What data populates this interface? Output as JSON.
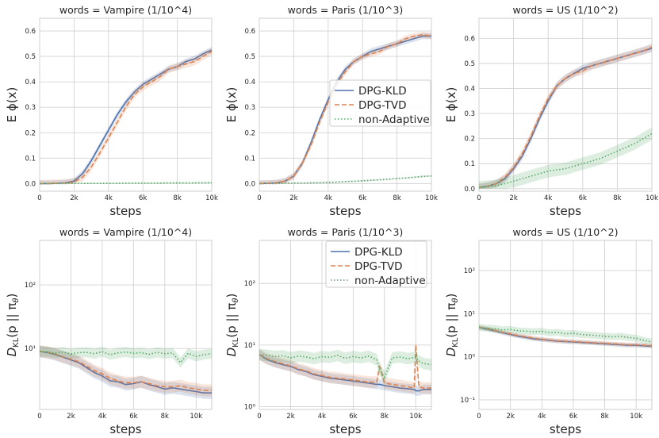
{
  "colors": {
    "DPG-KLD": "#4c72b0",
    "DPG-TVD": "#dd8452",
    "non-Adaptive": "#55a868"
  },
  "chart_data": [
    {
      "type": "line",
      "title": "words = Vampire (1/10^4)",
      "xlabel": "steps",
      "ylabel": "E ϕ(x)",
      "xlim": [
        0,
        10000
      ],
      "ylim": [
        -0.03,
        0.65
      ],
      "xticks": [
        0,
        2000,
        4000,
        6000,
        8000,
        10000
      ],
      "xtick_labels": [
        "0",
        "2k",
        "4k",
        "6k",
        "8k",
        "10k"
      ],
      "yticks": [
        0.0,
        0.1,
        0.2,
        0.3,
        0.4,
        0.5,
        0.6
      ],
      "ytick_labels": [
        "0.0",
        "0.1",
        "0.2",
        "0.3",
        "0.4",
        "0.5",
        "0.6"
      ],
      "yscale": "linear",
      "grid": true,
      "legend": null,
      "x": [
        0,
        500,
        1000,
        1500,
        2000,
        2500,
        3000,
        3500,
        4000,
        4500,
        5000,
        5500,
        6000,
        6500,
        7000,
        7500,
        8000,
        8500,
        9000,
        9500,
        10000
      ],
      "series": [
        {
          "name": "DPG-KLD",
          "style": "solid",
          "band": 0.012,
          "values": [
            0.0,
            0.0,
            0.001,
            0.003,
            0.01,
            0.04,
            0.09,
            0.15,
            0.21,
            0.27,
            0.32,
            0.36,
            0.39,
            0.41,
            0.43,
            0.45,
            0.46,
            0.48,
            0.49,
            0.51,
            0.525
          ]
        },
        {
          "name": "DPG-TVD",
          "style": "dashed",
          "band": 0.015,
          "values": [
            0.0,
            0.0,
            0.001,
            0.002,
            0.006,
            0.025,
            0.065,
            0.12,
            0.18,
            0.24,
            0.3,
            0.35,
            0.38,
            0.4,
            0.42,
            0.45,
            0.46,
            0.47,
            0.48,
            0.5,
            0.52
          ]
        },
        {
          "name": "non-Adaptive",
          "style": "dotted",
          "band": 0.002,
          "values": [
            0.0,
            0.0,
            0.0,
            0.0,
            0.001,
            0.001,
            0.001,
            0.001,
            0.001,
            0.001,
            0.002,
            0.002,
            0.002,
            0.002,
            0.002,
            0.003,
            0.003,
            0.003,
            0.003,
            0.004,
            0.004
          ]
        }
      ]
    },
    {
      "type": "line",
      "title": "words = Paris (1/10^3)",
      "xlabel": "steps",
      "ylabel": "E ϕ(x)",
      "xlim": [
        0,
        10000
      ],
      "ylim": [
        -0.03,
        0.65
      ],
      "xticks": [
        0,
        2000,
        4000,
        6000,
        8000,
        10000
      ],
      "xtick_labels": [
        "0",
        "2k",
        "4k",
        "6k",
        "8k",
        "10k"
      ],
      "yticks": [
        0.0,
        0.1,
        0.2,
        0.3,
        0.4,
        0.5,
        0.6
      ],
      "ytick_labels": [
        "0.0",
        "0.1",
        "0.2",
        "0.3",
        "0.4",
        "0.5",
        "0.6"
      ],
      "yscale": "linear",
      "grid": true,
      "legend": "center-right",
      "x": [
        0,
        500,
        1000,
        1500,
        2000,
        2500,
        3000,
        3500,
        4000,
        4500,
        5000,
        5500,
        6000,
        6500,
        7000,
        7500,
        8000,
        8500,
        9000,
        9500,
        10000
      ],
      "series": [
        {
          "name": "DPG-KLD",
          "style": "solid",
          "band": 0.012,
          "values": [
            0.0,
            0.001,
            0.003,
            0.01,
            0.03,
            0.08,
            0.16,
            0.25,
            0.33,
            0.4,
            0.45,
            0.48,
            0.5,
            0.52,
            0.53,
            0.54,
            0.55,
            0.56,
            0.57,
            0.58,
            0.58
          ]
        },
        {
          "name": "DPG-TVD",
          "style": "dashed",
          "band": 0.012,
          "values": [
            0.0,
            0.001,
            0.003,
            0.01,
            0.03,
            0.08,
            0.15,
            0.24,
            0.32,
            0.39,
            0.44,
            0.48,
            0.5,
            0.51,
            0.52,
            0.54,
            0.55,
            0.57,
            0.58,
            0.585,
            0.58
          ]
        },
        {
          "name": "non-Adaptive",
          "style": "dotted",
          "band": 0.003,
          "values": [
            0.0,
            0.0,
            0.0,
            0.001,
            0.002,
            0.002,
            0.003,
            0.004,
            0.005,
            0.006,
            0.008,
            0.009,
            0.011,
            0.013,
            0.015,
            0.017,
            0.02,
            0.022,
            0.025,
            0.028,
            0.03
          ]
        }
      ]
    },
    {
      "type": "line",
      "title": "words = US (1/10^2)",
      "xlabel": "steps",
      "ylabel": "E ϕ(x)",
      "xlim": [
        0,
        10000
      ],
      "ylim": [
        -0.01,
        0.68
      ],
      "xticks": [
        0,
        2000,
        4000,
        6000,
        8000,
        10000
      ],
      "xtick_labels": [
        "0",
        "2k",
        "4k",
        "6k",
        "8k",
        "10k"
      ],
      "yticks": [
        0.0,
        0.1,
        0.2,
        0.3,
        0.4,
        0.5,
        0.6
      ],
      "ytick_labels": [
        "0.0",
        "0.1",
        "0.2",
        "0.3",
        "0.4",
        "0.5",
        "0.6"
      ],
      "yscale": "linear",
      "grid": true,
      "legend": null,
      "x": [
        0,
        500,
        1000,
        1500,
        2000,
        2500,
        3000,
        3500,
        4000,
        4500,
        5000,
        5500,
        6000,
        6500,
        7000,
        7500,
        8000,
        8500,
        9000,
        9500,
        10000
      ],
      "series": [
        {
          "name": "DPG-KLD",
          "style": "solid",
          "band": 0.015,
          "values": [
            0.005,
            0.01,
            0.02,
            0.04,
            0.08,
            0.13,
            0.2,
            0.28,
            0.35,
            0.41,
            0.44,
            0.46,
            0.48,
            0.49,
            0.5,
            0.51,
            0.52,
            0.53,
            0.54,
            0.55,
            0.56
          ]
        },
        {
          "name": "DPG-TVD",
          "style": "dashed",
          "band": 0.015,
          "values": [
            0.005,
            0.01,
            0.02,
            0.045,
            0.085,
            0.14,
            0.21,
            0.29,
            0.36,
            0.41,
            0.44,
            0.46,
            0.47,
            0.49,
            0.5,
            0.51,
            0.52,
            0.53,
            0.54,
            0.55,
            0.565
          ]
        },
        {
          "name": "non-Adaptive",
          "style": "dotted",
          "band": 0.025,
          "values": [
            0.005,
            0.008,
            0.012,
            0.02,
            0.03,
            0.04,
            0.05,
            0.06,
            0.07,
            0.075,
            0.08,
            0.09,
            0.1,
            0.11,
            0.12,
            0.135,
            0.15,
            0.165,
            0.18,
            0.2,
            0.22
          ]
        }
      ]
    },
    {
      "type": "line",
      "title": "words = Vampire (1/10^4)",
      "xlabel": "steps",
      "ylabel": "D_KL(p || π_θ)",
      "xlim": [
        0,
        11000
      ],
      "ylim": [
        1.1,
        500
      ],
      "xticks": [
        0,
        2000,
        4000,
        6000,
        8000,
        10000
      ],
      "xtick_labels": [
        "0",
        "2k",
        "4k",
        "6k",
        "8k",
        "10k"
      ],
      "yticks": [
        10,
        100
      ],
      "ytick_labels": [
        "10¹",
        "10²"
      ],
      "yscale": "log",
      "grid": true,
      "legend": null,
      "x": [
        0,
        500,
        1000,
        1500,
        2000,
        2500,
        3000,
        3500,
        4000,
        4500,
        5000,
        5500,
        6000,
        6500,
        7000,
        7500,
        8000,
        8500,
        9000,
        9500,
        10000,
        10500,
        11000
      ],
      "series": [
        {
          "name": "DPG-KLD",
          "style": "solid",
          "band": 0.12,
          "values": [
            9.0,
            8.6,
            8.0,
            7.3,
            6.6,
            6.0,
            5.0,
            4.2,
            3.7,
            3.1,
            3.0,
            2.7,
            2.8,
            3.0,
            2.7,
            2.5,
            2.3,
            2.4,
            2.3,
            2.2,
            2.1,
            2.0,
            2.0
          ]
        },
        {
          "name": "DPG-TVD",
          "style": "dashed",
          "band": 0.12,
          "values": [
            9.0,
            8.7,
            8.2,
            7.4,
            6.8,
            6.2,
            5.3,
            4.5,
            4.0,
            3.4,
            3.1,
            2.9,
            2.9,
            3.0,
            2.8,
            2.6,
            2.5,
            2.5,
            2.6,
            2.4,
            2.3,
            2.2,
            2.2
          ]
        },
        {
          "name": "non-Adaptive",
          "style": "dotted",
          "band": 0.1,
          "values": [
            9.0,
            8.9,
            8.5,
            8.8,
            8.2,
            8.6,
            8.7,
            8.3,
            8.9,
            8.0,
            8.5,
            8.8,
            8.4,
            8.6,
            8.1,
            8.7,
            8.3,
            8.5,
            6.0,
            8.4,
            7.5,
            8.0,
            8.3
          ]
        }
      ]
    },
    {
      "type": "line",
      "title": "words = Paris (1/10^3)",
      "xlabel": "steps",
      "ylabel": "D_KL(p || π_θ)",
      "xlim": [
        0,
        11000
      ],
      "ylim": [
        0.9,
        500
      ],
      "xticks": [
        0,
        2000,
        4000,
        6000,
        8000,
        10000
      ],
      "xtick_labels": [
        "0",
        "2k",
        "4k",
        "6k",
        "8k",
        "10k"
      ],
      "yticks": [
        1,
        10,
        100
      ],
      "ytick_labels": [
        "10⁰",
        "10¹",
        "10²"
      ],
      "yscale": "log",
      "grid": true,
      "legend": "top-right",
      "x": [
        0,
        500,
        1000,
        1500,
        2000,
        2500,
        3000,
        3500,
        4000,
        4500,
        5000,
        5500,
        6000,
        6500,
        7000,
        7500,
        7700,
        8000,
        8500,
        9000,
        9500,
        9900,
        10000,
        10200,
        10500,
        11000
      ],
      "series": [
        {
          "name": "DPG-KLD",
          "style": "solid",
          "band": 0.1,
          "values": [
            7.0,
            5.8,
            5.2,
            4.8,
            4.5,
            4.0,
            3.7,
            3.3,
            3.1,
            2.9,
            2.8,
            2.7,
            2.6,
            2.5,
            2.4,
            2.3,
            2.3,
            2.2,
            2.1,
            2.0,
            1.95,
            1.9,
            1.8,
            1.8,
            1.9,
            1.9
          ]
        },
        {
          "name": "DPG-TVD",
          "style": "dashed",
          "band": 0.12,
          "values": [
            7.0,
            6.0,
            5.4,
            5.0,
            4.6,
            4.1,
            3.8,
            3.4,
            3.2,
            3.0,
            2.9,
            2.8,
            2.7,
            2.6,
            2.5,
            2.5,
            4.5,
            2.4,
            2.3,
            2.2,
            2.1,
            2.0,
            10.0,
            2.1,
            2.0,
            2.0
          ]
        },
        {
          "name": "non-Adaptive",
          "style": "dotted",
          "band": 0.12,
          "values": [
            7.0,
            6.8,
            6.5,
            6.7,
            6.2,
            6.6,
            6.4,
            6.0,
            6.5,
            6.3,
            6.8,
            6.1,
            6.5,
            6.2,
            6.6,
            5.8,
            4.0,
            3.0,
            6.2,
            6.4,
            6.0,
            6.3,
            6.5,
            5.5,
            5.0,
            4.8
          ]
        }
      ]
    },
    {
      "type": "line",
      "title": "words = US (1/10^2)",
      "xlabel": "steps",
      "ylabel": "D_KL(p || π_θ)",
      "xlim": [
        0,
        11000
      ],
      "ylim": [
        0.06,
        500
      ],
      "xticks": [
        0,
        2000,
        4000,
        6000,
        8000,
        10000
      ],
      "xtick_labels": [
        "0",
        "2k",
        "4k",
        "6k",
        "8k",
        "10k"
      ],
      "yticks": [
        0.1,
        1,
        10,
        100
      ],
      "ytick_labels": [
        "10⁻¹",
        "10⁰",
        "10¹",
        "10²"
      ],
      "yscale": "log",
      "grid": true,
      "legend": null,
      "x": [
        0,
        500,
        1000,
        1500,
        2000,
        2500,
        3000,
        3500,
        4000,
        4500,
        5000,
        5500,
        6000,
        6500,
        7000,
        7500,
        8000,
        8500,
        9000,
        9500,
        10000,
        10500,
        11000
      ],
      "series": [
        {
          "name": "DPG-KLD",
          "style": "solid",
          "band": 0.06,
          "values": [
            4.8,
            4.4,
            4.0,
            3.6,
            3.3,
            3.0,
            2.8,
            2.6,
            2.5,
            2.4,
            2.3,
            2.25,
            2.2,
            2.15,
            2.1,
            2.05,
            2.0,
            1.95,
            1.9,
            1.85,
            1.85,
            1.8,
            1.75
          ]
        },
        {
          "name": "DPG-TVD",
          "style": "dashed",
          "band": 0.06,
          "values": [
            4.8,
            4.5,
            4.1,
            3.7,
            3.4,
            3.1,
            2.9,
            2.7,
            2.55,
            2.45,
            2.35,
            2.3,
            2.25,
            2.2,
            2.15,
            2.1,
            2.05,
            2.0,
            1.95,
            1.9,
            1.9,
            1.85,
            1.8
          ]
        },
        {
          "name": "non-Adaptive",
          "style": "dotted",
          "band": 0.1,
          "values": [
            4.8,
            4.6,
            4.5,
            4.2,
            4.3,
            4.0,
            3.9,
            3.8,
            3.9,
            3.6,
            3.7,
            3.4,
            3.5,
            3.3,
            3.2,
            3.1,
            3.0,
            2.9,
            3.0,
            2.8,
            2.7,
            2.4,
            2.2
          ]
        }
      ]
    }
  ]
}
